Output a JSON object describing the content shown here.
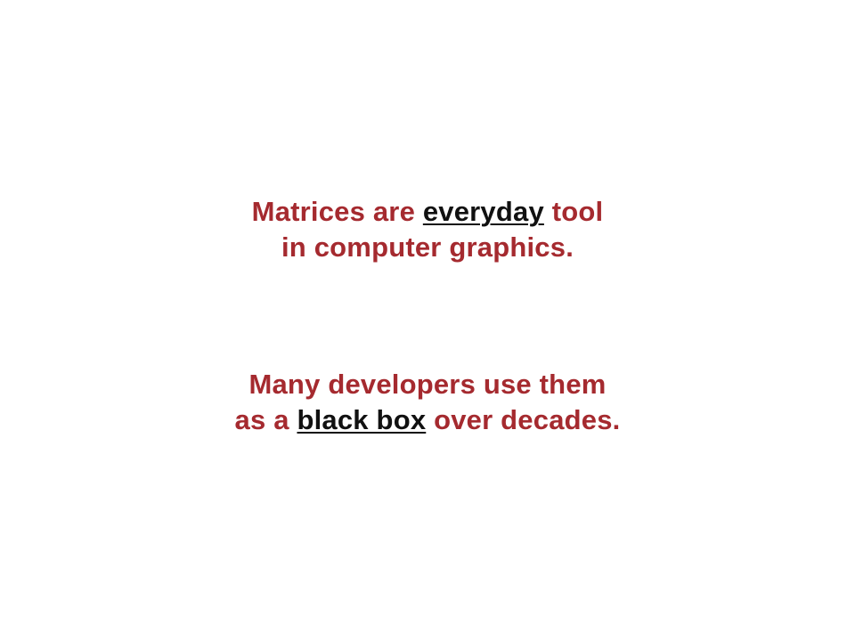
{
  "colors": {
    "background": "#ffffff",
    "text": "#a52a2f",
    "emphasis": "#111111"
  },
  "block1": {
    "line1_before": "Matrices are ",
    "line1_emphasis": "everyday",
    "line1_after": " tool",
    "line2": "in computer graphics."
  },
  "block2": {
    "line1": "Many developers use them",
    "line2_before": "as a ",
    "line2_emphasis": "black box",
    "line2_after": " over decades."
  }
}
